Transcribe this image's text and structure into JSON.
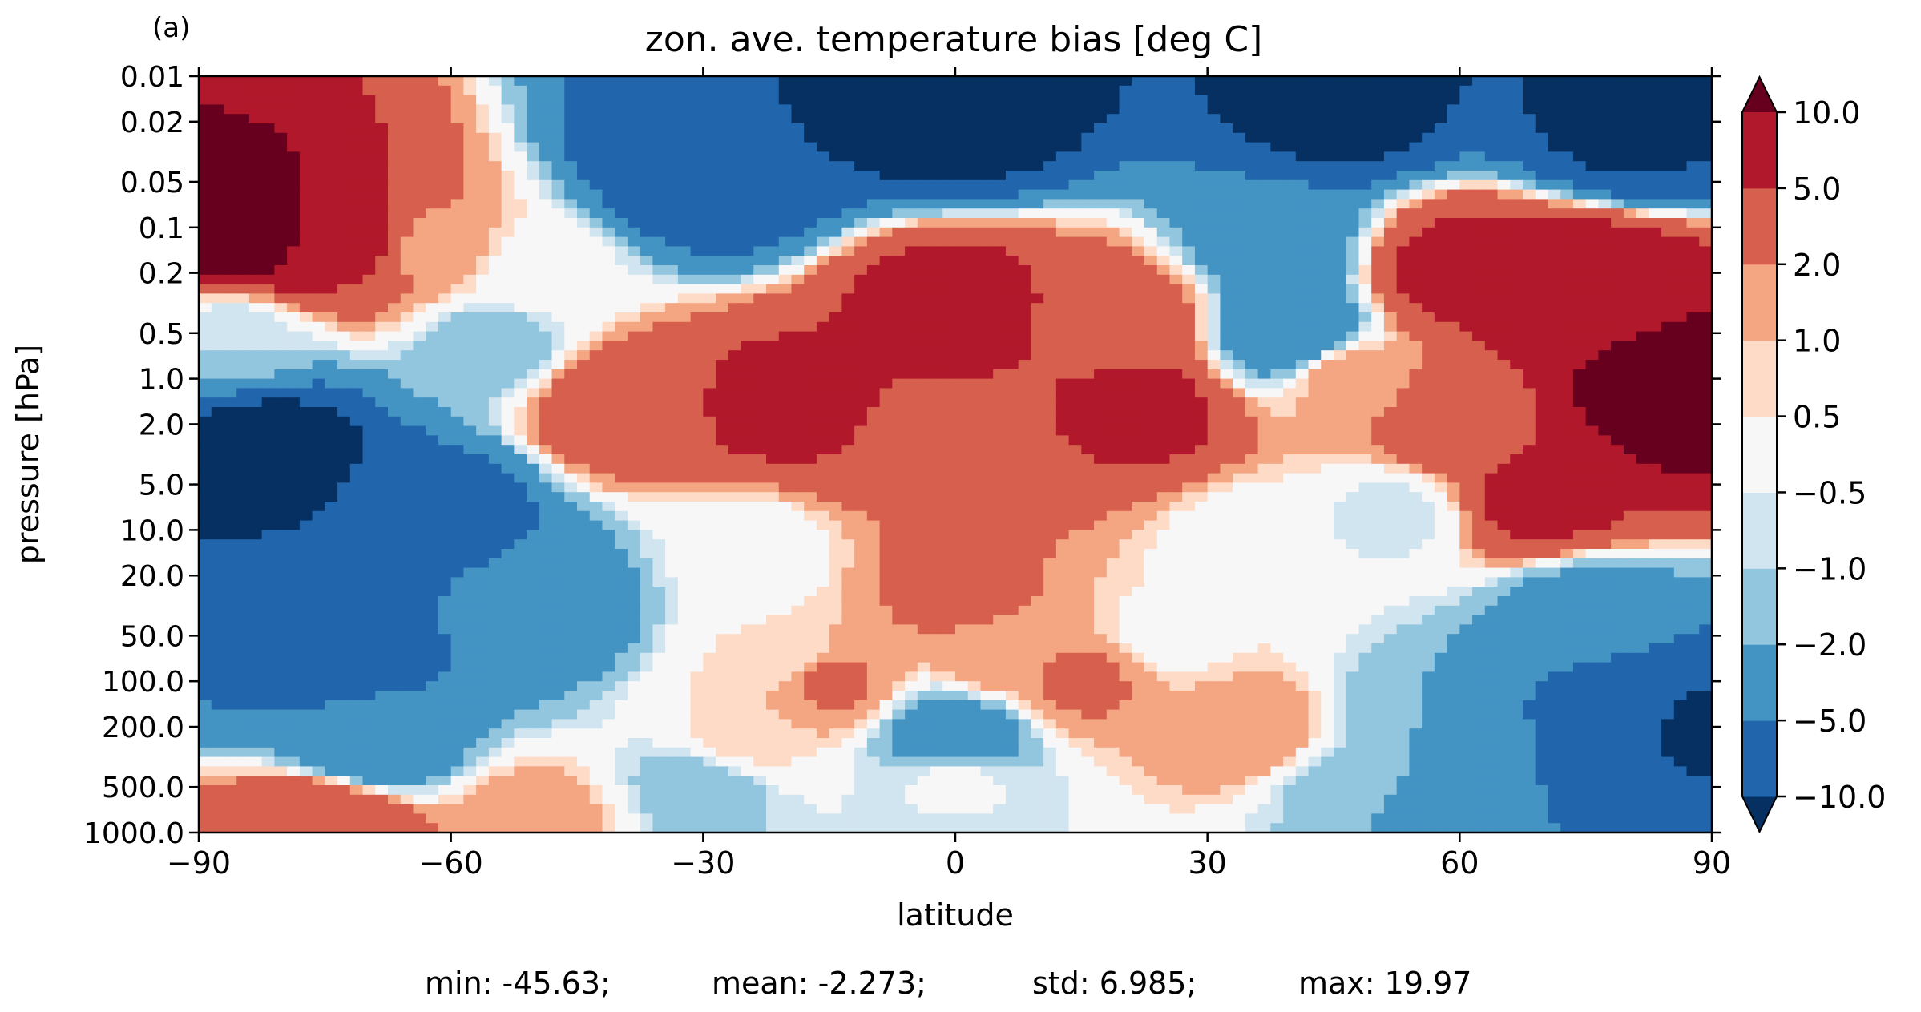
{
  "panel_label": "(a)",
  "chart_data": {
    "type": "heatmap",
    "subtype": "filled-contour",
    "title": "zon. ave. temperature bias [deg C]",
    "xlabel": "latitude",
    "ylabel": "pressure [hPa]",
    "xlim": [
      -90,
      90
    ],
    "ylim": [
      1000,
      0.01
    ],
    "y_scale": "log",
    "x_ticks": [
      "−90",
      "−60",
      "−30",
      "0",
      "30",
      "60",
      "90"
    ],
    "x_tick_values": [
      -90,
      -60,
      -30,
      0,
      30,
      60,
      90
    ],
    "y_ticks": [
      "0.01",
      "0.02",
      "0.05",
      "0.1",
      "0.2",
      "0.5",
      "1.0",
      "2.0",
      "5.0",
      "10.0",
      "20.0",
      "50.0",
      "100.0",
      "200.0",
      "500.0",
      "1000.0"
    ],
    "y_tick_values": [
      0.01,
      0.02,
      0.05,
      0.1,
      0.2,
      0.5,
      1,
      2,
      5,
      10,
      20,
      50,
      100,
      200,
      500,
      1000
    ],
    "colorbar": {
      "levels": [
        -10,
        -5,
        -2,
        -1,
        -0.5,
        0.5,
        1,
        2,
        5,
        10
      ],
      "tick_labels": [
        "−10.0",
        "−5.0",
        "−2.0",
        "−1.0",
        "−0.5",
        "0.5",
        "1.0",
        "2.0",
        "5.0",
        "10.0"
      ],
      "extend": "both",
      "colors": [
        "#053061",
        "#2166ac",
        "#4393c3",
        "#92c5de",
        "#d1e5f0",
        "#f7f7f7",
        "#fddbc7",
        "#f4a582",
        "#d6604d",
        "#b2182b",
        "#67001f"
      ]
    },
    "grid": false,
    "stats": [
      "min: -45.63;",
      "mean: -2.273;",
      "std: 6.985;",
      "max: 19.97"
    ],
    "anchor_field": [
      {
        "lat": -85,
        "p": 0.1,
        "v": 15
      },
      {
        "lat": -72,
        "p": 0.12,
        "v": 6
      },
      {
        "lat": -62,
        "p": 0.14,
        "v": 1.5
      },
      {
        "lat": -86,
        "p": 0.55,
        "v": -1
      },
      {
        "lat": -82,
        "p": 3,
        "v": -13
      },
      {
        "lat": -62,
        "p": 8,
        "v": -7
      },
      {
        "lat": -75,
        "p": 60,
        "v": -8
      },
      {
        "lat": -70,
        "p": 250,
        "v": -4
      },
      {
        "lat": -50,
        "p": 30,
        "v": -4
      },
      {
        "lat": -55,
        "p": 0.6,
        "v": -1.5
      },
      {
        "lat": -50,
        "p": 0.2,
        "v": 0
      },
      {
        "lat": -30,
        "p": 0.04,
        "v": -10
      },
      {
        "lat": 0,
        "p": 0.015,
        "v": -14
      },
      {
        "lat": 45,
        "p": 0.015,
        "v": -12
      },
      {
        "lat": 80,
        "p": 0.02,
        "v": -11
      },
      {
        "lat": 38,
        "p": 0.13,
        "v": -3.5
      },
      {
        "lat": 40,
        "p": 0.5,
        "v": -4
      },
      {
        "lat": -40,
        "p": 1.5,
        "v": 4
      },
      {
        "lat": -20,
        "p": 1.5,
        "v": 6
      },
      {
        "lat": 0,
        "p": 0.35,
        "v": 6.5
      },
      {
        "lat": 0,
        "p": 3,
        "v": 3.5
      },
      {
        "lat": 22,
        "p": 1.6,
        "v": 6
      },
      {
        "lat": 20,
        "p": 0.4,
        "v": 3.5
      },
      {
        "lat": 0,
        "p": 25,
        "v": 2.5
      },
      {
        "lat": 5,
        "p": 70,
        "v": 1.6
      },
      {
        "lat": -20,
        "p": 70,
        "v": 0.5
      },
      {
        "lat": 25,
        "p": 50,
        "v": 0.3
      },
      {
        "lat": -25,
        "p": 15,
        "v": -0.3
      },
      {
        "lat": 35,
        "p": 12,
        "v": 0
      },
      {
        "lat": -15,
        "p": 100,
        "v": 2.2
      },
      {
        "lat": 15,
        "p": 100,
        "v": 2.2
      },
      {
        "lat": 0,
        "p": 220,
        "v": -3.5
      },
      {
        "lat": -25,
        "p": 230,
        "v": 0.8
      },
      {
        "lat": 35,
        "p": 230,
        "v": 2
      },
      {
        "lat": 60,
        "p": 0.2,
        "v": 6
      },
      {
        "lat": 75,
        "p": 0.25,
        "v": 8
      },
      {
        "lat": 85,
        "p": 1.3,
        "v": 14
      },
      {
        "lat": 70,
        "p": 6,
        "v": 6
      },
      {
        "lat": 60,
        "p": 2,
        "v": 4
      },
      {
        "lat": 47,
        "p": 1,
        "v": 1.5
      },
      {
        "lat": 52,
        "p": 8,
        "v": -0.7
      },
      {
        "lat": 75,
        "p": 35,
        "v": -3
      },
      {
        "lat": 80,
        "p": 150,
        "v": -7
      },
      {
        "lat": 88,
        "p": 200,
        "v": -11
      },
      {
        "lat": 55,
        "p": 200,
        "v": -2
      },
      {
        "lat": 0,
        "p": 500,
        "v": -0.3
      },
      {
        "lat": -30,
        "p": 500,
        "v": -1.5
      },
      {
        "lat": 45,
        "p": 500,
        "v": -1.2
      },
      {
        "lat": 75,
        "p": 600,
        "v": -5
      },
      {
        "lat": -75,
        "p": 900,
        "v": 5
      },
      {
        "lat": -50,
        "p": 880,
        "v": 1.5
      },
      {
        "lat": 0,
        "p": 950,
        "v": -0.6
      },
      {
        "lat": 60,
        "p": 950,
        "v": -5
      }
    ]
  }
}
